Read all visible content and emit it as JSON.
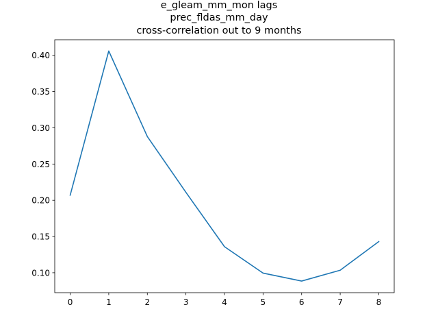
{
  "chart_data": {
    "type": "line",
    "title_lines": [
      "e_gleam_mm_mon lags",
      "prec_fldas_mm_day",
      "cross-correlation out to 9 months"
    ],
    "xlabel": "",
    "ylabel": "",
    "x": [
      0,
      1,
      2,
      3,
      4,
      5,
      6,
      7,
      8
    ],
    "series": [
      {
        "values": [
          0.207,
          0.406,
          0.288,
          0.211,
          0.136,
          0.0995,
          0.0885,
          0.1035,
          0.143
        ],
        "color": "#1f77b4"
      }
    ],
    "xlim": [
      -0.4,
      8.4
    ],
    "ylim": [
      0.0725,
      0.4215
    ],
    "x_ticks": [
      0,
      1,
      2,
      3,
      4,
      5,
      6,
      7,
      8
    ],
    "x_tick_labels": [
      "0",
      "1",
      "2",
      "3",
      "4",
      "5",
      "6",
      "7",
      "8"
    ],
    "y_ticks": [
      0.1,
      0.15,
      0.2,
      0.25,
      0.3,
      0.35,
      0.4
    ],
    "y_tick_labels": [
      "0.10",
      "0.15",
      "0.20",
      "0.25",
      "0.30",
      "0.35",
      "0.40"
    ],
    "grid": false,
    "legend": "none"
  }
}
